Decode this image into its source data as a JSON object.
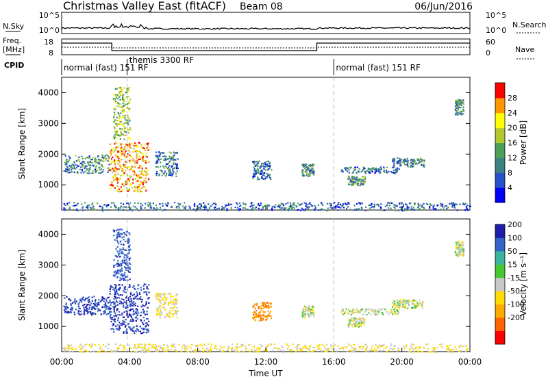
{
  "header": {
    "title": "Christmas Valley East (fitACF)",
    "beam": "Beam 08",
    "date": "06/Jun/2016"
  },
  "top_panels": {
    "nsky_label": "N.Sky",
    "nsky_ticks": [
      "10^5",
      "10^0"
    ],
    "nsearch_label": "N.Search",
    "nsearch_ticks": [
      "10^5",
      "10^0"
    ],
    "freq_label_1": "Freq.",
    "freq_label_2": "[MHz]",
    "freq_ticks": [
      "18",
      "8"
    ],
    "nave_label": "Nave",
    "nave_ticks": [
      "60",
      "0"
    ],
    "cpid_label": "CPID",
    "cpid_segments": [
      {
        "label": "normal (fast) 151 RF",
        "start_h": 0,
        "end_h": 3.85
      },
      {
        "label": "themis 3300 RF",
        "start_h": 3.85,
        "end_h": 16.0
      },
      {
        "label": "normal (fast) 151 RF",
        "start_h": 16.0,
        "end_h": 24
      }
    ]
  },
  "chart_data": [
    {
      "type": "heatmap",
      "title": "",
      "xlabel": "Time UT",
      "ylabel": "Slant Range [km]",
      "xlim": [
        0,
        24
      ],
      "ylim": [
        180,
        4500
      ],
      "x_ticks": [
        "00:00",
        "04:00",
        "08:00",
        "12:00",
        "16:00",
        "20:00",
        "00:00"
      ],
      "y_ticks": [
        1000,
        2000,
        3000,
        4000
      ],
      "colorbar": {
        "label": "Power [dB]",
        "ticks": [
          4,
          8,
          12,
          16,
          20,
          24,
          28
        ],
        "range": [
          0,
          30
        ],
        "colors": [
          "#0000ff",
          "#2850c8",
          "#3c8282",
          "#4ca05a",
          "#b4c832",
          "#ffff00",
          "#ff9600",
          "#ff0000"
        ]
      },
      "echo_regions": [
        {
          "t0": 0.1,
          "t1": 2.8,
          "r0": 1400,
          "r1": 2000,
          "level": 10
        },
        {
          "t0": 2.8,
          "t1": 5.1,
          "r0": 800,
          "r1": 2400,
          "level": 22
        },
        {
          "t0": 3.0,
          "t1": 4.0,
          "r0": 2500,
          "r1": 4200,
          "level": 16
        },
        {
          "t0": 5.5,
          "t1": 6.8,
          "r0": 1300,
          "r1": 2100,
          "level": 9
        },
        {
          "t0": 11.2,
          "t1": 12.3,
          "r0": 1200,
          "r1": 1800,
          "level": 8
        },
        {
          "t0": 14.1,
          "t1": 14.8,
          "r0": 1300,
          "r1": 1700,
          "level": 10
        },
        {
          "t0": 16.4,
          "t1": 19.8,
          "r0": 1400,
          "r1": 1600,
          "level": 9
        },
        {
          "t0": 16.8,
          "t1": 17.8,
          "r0": 1000,
          "r1": 1300,
          "level": 12
        },
        {
          "t0": 19.4,
          "t1": 21.3,
          "r0": 1600,
          "r1": 1900,
          "level": 9
        },
        {
          "t0": 23.1,
          "t1": 23.6,
          "r0": 3300,
          "r1": 3800,
          "level": 11
        },
        {
          "t0": 0.0,
          "t1": 24.0,
          "r0": 180,
          "r1": 450,
          "level": 8
        }
      ]
    },
    {
      "type": "heatmap",
      "title": "",
      "xlabel": "Time UT",
      "ylabel": "Slant Range [km]",
      "xlim": [
        0,
        24
      ],
      "ylim": [
        180,
        4500
      ],
      "x_ticks": [
        "00:00",
        "04:00",
        "08:00",
        "12:00",
        "16:00",
        "20:00",
        "00:00"
      ],
      "y_ticks": [
        1000,
        2000,
        3000,
        4000
      ],
      "colorbar": {
        "label": "Velocity [m s⁻¹]",
        "ticks": [
          "200",
          "100",
          "50",
          "15",
          "-15",
          "-50",
          "-100",
          "-200"
        ],
        "range": [
          -250,
          250
        ],
        "colors": [
          "#1e1eaa",
          "#3264c8",
          "#3cb4a0",
          "#46c832",
          "#c8c8c8",
          "#ffdc00",
          "#ffaa00",
          "#ff6400",
          "#ff0000"
        ]
      },
      "echo_regions": [
        {
          "t0": 0.1,
          "t1": 2.8,
          "r0": 1400,
          "r1": 2000,
          "level": 200
        },
        {
          "t0": 2.8,
          "t1": 5.1,
          "r0": 800,
          "r1": 2400,
          "level": 200
        },
        {
          "t0": 3.0,
          "t1": 4.0,
          "r0": 2500,
          "r1": 4200,
          "level": 180
        },
        {
          "t0": 5.5,
          "t1": 6.8,
          "r0": 1300,
          "r1": 2100,
          "level": -20
        },
        {
          "t0": 11.2,
          "t1": 12.3,
          "r0": 1200,
          "r1": 1800,
          "level": -90
        },
        {
          "t0": 14.1,
          "t1": 14.8,
          "r0": 1300,
          "r1": 1700,
          "level": 0
        },
        {
          "t0": 16.4,
          "t1": 19.8,
          "r0": 1400,
          "r1": 1600,
          "level": 0
        },
        {
          "t0": 16.8,
          "t1": 17.8,
          "r0": 1000,
          "r1": 1300,
          "level": 0
        },
        {
          "t0": 19.4,
          "t1": 21.3,
          "r0": 1600,
          "r1": 1900,
          "level": 0
        },
        {
          "t0": 23.1,
          "t1": 23.6,
          "r0": 3300,
          "r1": 3800,
          "level": 0
        },
        {
          "t0": 0.0,
          "t1": 24.0,
          "r0": 180,
          "r1": 450,
          "level": -20
        }
      ]
    }
  ]
}
